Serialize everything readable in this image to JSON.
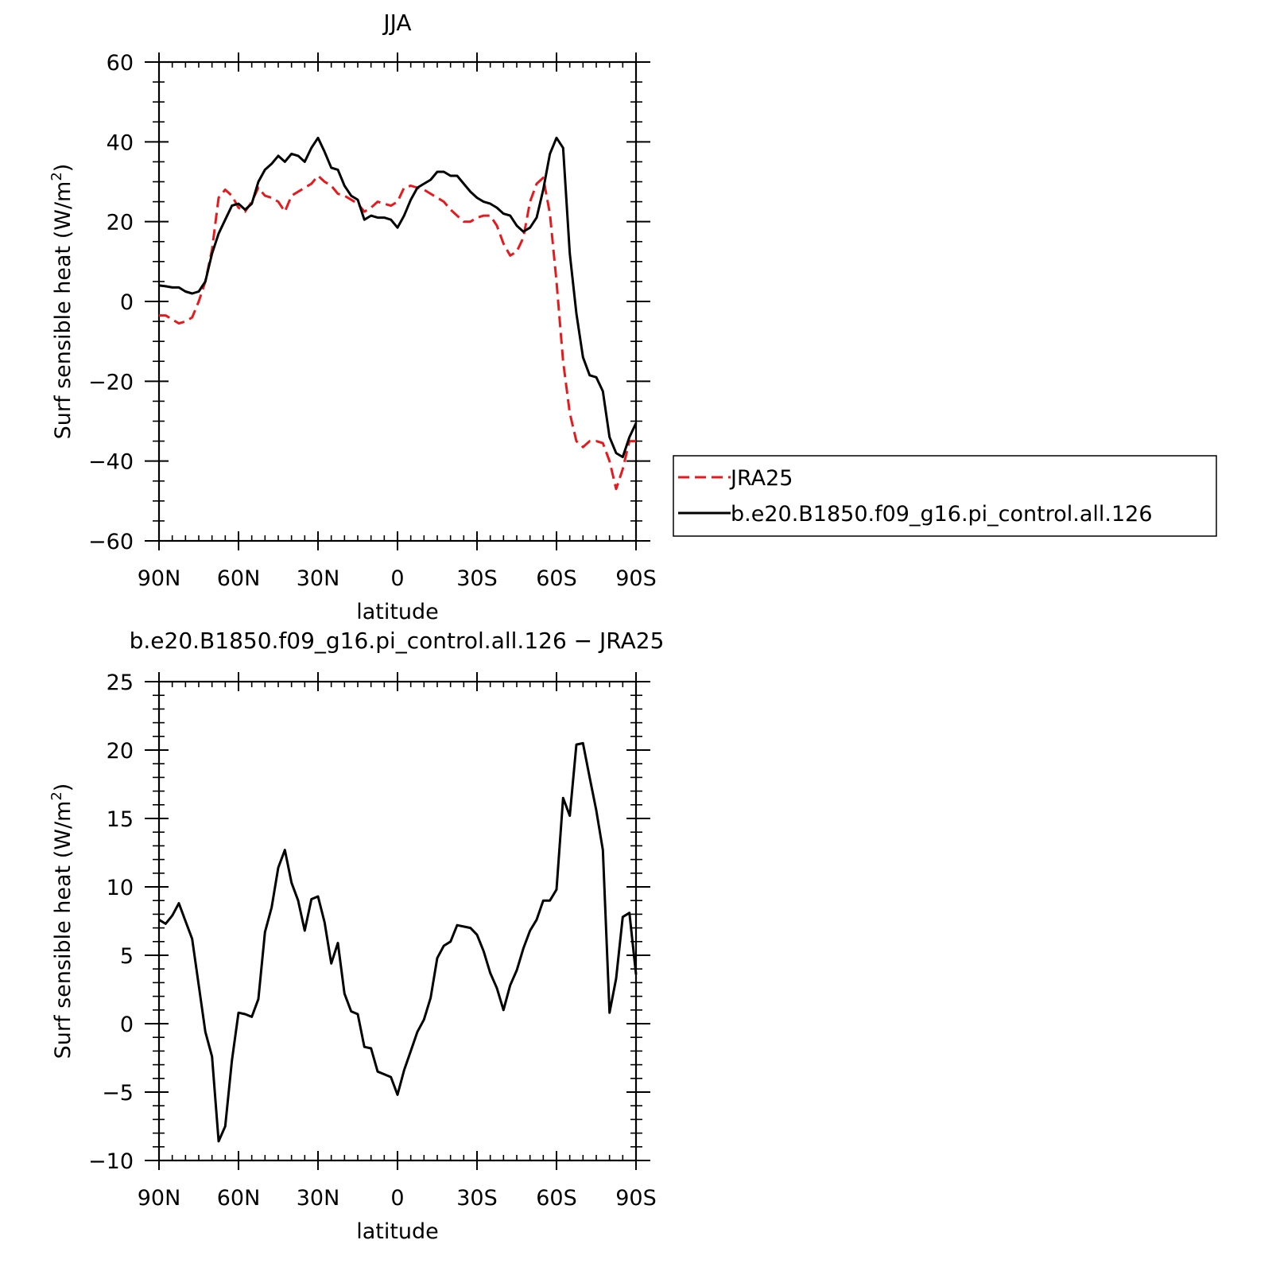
{
  "chart_data": [
    {
      "type": "line",
      "title": "JJA",
      "xlabel": "latitude",
      "ylabel": "Surf sensible heat (W/m",
      "ylabel_sup": "2",
      "ylabel_close": ")",
      "xlim": [
        90,
        -90
      ],
      "ylim": [
        -60,
        60
      ],
      "xticks": [
        {
          "value": 90,
          "label": "90N"
        },
        {
          "value": 60,
          "label": "60N"
        },
        {
          "value": 30,
          "label": "30N"
        },
        {
          "value": 0,
          "label": "0"
        },
        {
          "value": -30,
          "label": "30S"
        },
        {
          "value": -60,
          "label": "60S"
        },
        {
          "value": -90,
          "label": "90S"
        }
      ],
      "yticks": [
        {
          "value": 60,
          "label": "60"
        },
        {
          "value": 40,
          "label": "40"
        },
        {
          "value": 20,
          "label": "20"
        },
        {
          "value": 0,
          "label": "0"
        },
        {
          "value": -20,
          "label": "−20"
        },
        {
          "value": -40,
          "label": "−40"
        },
        {
          "value": -60,
          "label": "−60"
        }
      ],
      "legend": "right",
      "series": [
        {
          "name": "JRA25",
          "color": "#e8191c",
          "dash": "dashed",
          "x": [
            90,
            87.5,
            85,
            82.5,
            80,
            77.5,
            75,
            72.5,
            70,
            67.5,
            65,
            62.5,
            60,
            57.5,
            55,
            52.5,
            50,
            47.5,
            45,
            42.5,
            40,
            37.5,
            35,
            32.5,
            30,
            27.5,
            25,
            22.5,
            20,
            17.5,
            15,
            12.5,
            10,
            7.5,
            5,
            2.5,
            0,
            -2.5,
            -5,
            -7.5,
            -10,
            -12.5,
            -15,
            -17.5,
            -20,
            -22.5,
            -25,
            -27.5,
            -30,
            -32.5,
            -35,
            -37.5,
            -40,
            -42.5,
            -45,
            -47.5,
            -50,
            -52.5,
            -55,
            -57.5,
            -60,
            -62.5,
            -65,
            -67.5,
            -70,
            -72.5,
            -75,
            -77.5,
            -80,
            -82.5,
            -85,
            -87.5,
            -90
          ],
          "y": [
            -3.5,
            -3.5,
            -4.5,
            -5.5,
            -5,
            -4,
            0,
            5,
            13,
            26,
            28,
            26.5,
            23.5,
            22.5,
            25,
            28.5,
            26.5,
            26,
            25,
            22.5,
            26.5,
            27.5,
            28.5,
            29.5,
            31.5,
            30,
            29,
            27,
            26.5,
            25.5,
            24.5,
            22.5,
            23.5,
            25,
            24.5,
            24,
            25,
            28.5,
            29,
            28.5,
            28,
            27,
            26,
            25,
            23,
            21.5,
            20,
            20,
            21,
            21.5,
            21.5,
            19,
            14.5,
            11.5,
            12.5,
            16,
            25,
            29.5,
            31,
            22,
            5,
            -15,
            -28,
            -35,
            -36.5,
            -35,
            -35,
            -35.5,
            -40,
            -47,
            -42,
            -35,
            -35
          ]
        },
        {
          "name": "b.e20.B1850.f09_g16.pi_control.all.126",
          "color": "#000000",
          "dash": "solid",
          "x": [
            90,
            87.5,
            85,
            82.5,
            80,
            77.5,
            75,
            72.5,
            70,
            67.5,
            65,
            62.5,
            60,
            57.5,
            55,
            52.5,
            50,
            47.5,
            45,
            42.5,
            40,
            37.5,
            35,
            32.5,
            30,
            27.5,
            25,
            22.5,
            20,
            17.5,
            15,
            12.5,
            10,
            7.5,
            5,
            2.5,
            0,
            -2.5,
            -5,
            -7.5,
            -10,
            -12.5,
            -15,
            -17.5,
            -20,
            -22.5,
            -25,
            -27.5,
            -30,
            -32.5,
            -35,
            -37.5,
            -40,
            -42.5,
            -45,
            -47.5,
            -50,
            -52.5,
            -55,
            -57.5,
            -60,
            -62.5,
            -65,
            -67.5,
            -70,
            -72.5,
            -75,
            -77.5,
            -80,
            -82.5,
            -85,
            -87.5,
            -90
          ],
          "y": [
            4,
            3.8,
            3.5,
            3.5,
            2.5,
            2,
            2.5,
            5,
            12,
            17,
            20.5,
            24,
            24.5,
            23,
            24.5,
            30,
            33,
            34.5,
            36.5,
            35,
            37,
            36.5,
            35,
            38.5,
            41,
            37.5,
            33.5,
            33,
            29,
            26.5,
            25.5,
            20.5,
            21.5,
            21,
            21,
            20.5,
            18.5,
            21.5,
            25.5,
            28.5,
            29.5,
            30.5,
            32.5,
            32.5,
            31.5,
            31.5,
            29.5,
            27.5,
            26,
            25,
            24.5,
            23.5,
            22,
            21.5,
            19,
            17.5,
            18.5,
            21,
            28,
            37,
            41,
            38.5,
            12,
            -3,
            -14,
            -18.5,
            -19,
            -22.5,
            -34,
            -38,
            -39,
            -34,
            -30.5
          ]
        }
      ]
    },
    {
      "type": "line",
      "title": "b.e20.B1850.f09_g16.pi_control.all.126 − JRA25",
      "xlabel": "latitude",
      "ylabel": "Surf sensible heat (W/m",
      "ylabel_sup": "2",
      "ylabel_close": ")",
      "xlim": [
        90,
        -90
      ],
      "ylim": [
        -10,
        25
      ],
      "xticks": [
        {
          "value": 90,
          "label": "90N"
        },
        {
          "value": 60,
          "label": "60N"
        },
        {
          "value": 30,
          "label": "30N"
        },
        {
          "value": 0,
          "label": "0"
        },
        {
          "value": -30,
          "label": "30S"
        },
        {
          "value": -60,
          "label": "60S"
        },
        {
          "value": -90,
          "label": "90S"
        }
      ],
      "yticks": [
        {
          "value": 25,
          "label": "25"
        },
        {
          "value": 20,
          "label": "20"
        },
        {
          "value": 15,
          "label": "15"
        },
        {
          "value": 10,
          "label": "10"
        },
        {
          "value": 5,
          "label": "5"
        },
        {
          "value": 0,
          "label": "0"
        },
        {
          "value": -5,
          "label": "−5"
        },
        {
          "value": -10,
          "label": "−10"
        }
      ],
      "series": [
        {
          "color": "#000000",
          "dash": "solid",
          "x": [
            90,
            87.5,
            85,
            82.5,
            80,
            77.5,
            75,
            72.5,
            70,
            67.5,
            65,
            62.5,
            60,
            57.5,
            55,
            52.5,
            50,
            47.5,
            45,
            42.5,
            40,
            37.5,
            35,
            32.5,
            30,
            27.5,
            25,
            22.5,
            20,
            17.5,
            15,
            12.5,
            10,
            7.5,
            5,
            2.5,
            0,
            -2.5,
            -5,
            -7.5,
            -10,
            -12.5,
            -15,
            -17.5,
            -20,
            -22.5,
            -25,
            -27.5,
            -30,
            -32.5,
            -35,
            -37.5,
            -40,
            -42.5,
            -45,
            -47.5,
            -50,
            -52.5,
            -55,
            -57.5,
            -60,
            -62.5,
            -65,
            -67.5,
            -70,
            -72.5,
            -75,
            -77.5,
            -80,
            -82.5,
            -85,
            -87.5,
            -90
          ],
          "y": [
            7.6,
            7.3,
            7.9,
            8.8,
            7.5,
            6.2,
            2.8,
            -0.6,
            -2.4,
            -8.6,
            -7.5,
            -2.7,
            0.8,
            0.7,
            0.5,
            1.8,
            6.7,
            8.5,
            11.4,
            12.7,
            10.3,
            9.0,
            6.8,
            9.1,
            9.3,
            7.4,
            4.4,
            5.9,
            2.2,
            0.9,
            0.7,
            -1.7,
            -1.8,
            -3.5,
            -3.7,
            -3.9,
            -5.2,
            -3.4,
            -2.0,
            -0.6,
            0.3,
            1.9,
            4.8,
            5.7,
            6.0,
            7.2,
            7.1,
            7.0,
            6.5,
            5.3,
            3.7,
            2.6,
            1.0,
            2.8,
            3.9,
            5.5,
            6.8,
            7.6,
            9.0,
            9.0,
            9.8,
            16.5,
            15.2,
            20.4,
            20.5,
            18.0,
            15.6,
            12.7,
            0.8,
            3.3,
            7.8,
            8.1,
            3.6
          ]
        }
      ]
    }
  ]
}
